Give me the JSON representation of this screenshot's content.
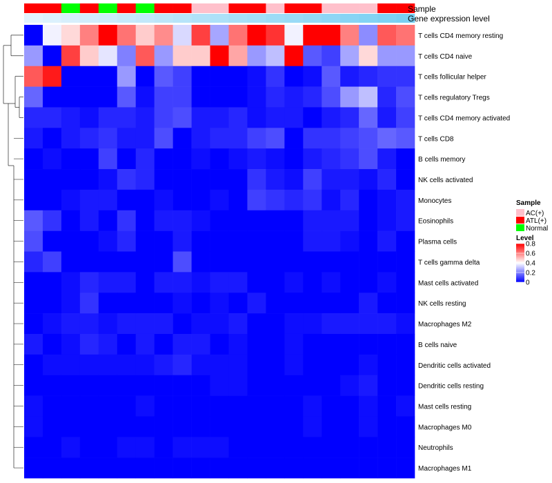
{
  "chart_data": {
    "type": "heatmap",
    "annotation_titles": {
      "sample": "Sample",
      "gene_expression": "Gene expression level"
    },
    "sample_legend": {
      "title": "Sample",
      "entries": [
        {
          "label": "AC(+)",
          "color": "#ffc0cb"
        },
        {
          "label": "ATL(+)",
          "color": "#ff0000"
        },
        {
          "label": "Normal",
          "color": "#00ff00"
        }
      ]
    },
    "level_legend": {
      "title": "Level",
      "ticks": [
        "0.8",
        "0.6",
        "0.4",
        "0.2",
        "0"
      ],
      "tick_values": [
        0.8,
        0.6,
        0.4,
        0.2,
        0
      ],
      "range": [
        0,
        0.8
      ],
      "colors": [
        "#0000ff",
        "#ffffff",
        "#ff0000"
      ]
    },
    "sample_groups": [
      "ATL(+)",
      "ATL(+)",
      "Normal",
      "ATL(+)",
      "Normal",
      "ATL(+)",
      "Normal",
      "ATL(+)",
      "ATL(+)",
      "AC(+)",
      "AC(+)",
      "ATL(+)",
      "ATL(+)",
      "AC(+)",
      "ATL(+)",
      "ATL(+)",
      "AC(+)",
      "AC(+)",
      "AC(+)",
      "ATL(+)",
      "ATL(+)"
    ],
    "gene_expression_level": [
      0.1,
      0.14,
      0.18,
      0.22,
      0.26,
      0.3,
      0.33,
      0.37,
      0.41,
      0.45,
      0.48,
      0.52,
      0.55,
      0.59,
      0.62,
      0.66,
      0.7,
      0.74,
      0.78,
      0.82,
      0.86
    ],
    "rows": [
      "T cells CD4 memory resting",
      "T cells CD4 naive",
      "T cells follicular helper",
      "T cells regulatory  Tregs",
      "T cells CD4 memory activated",
      "T cells CD8",
      "B cells memory",
      "NK cells activated",
      "Monocytes",
      "Eosinophils",
      "Plasma cells",
      "T cells gamma delta",
      "Mast cells activated",
      "NK cells resting",
      "Macrophages M2",
      "B cells naive",
      "Dendritic cells activated",
      "Dendritic cells resting",
      "Mast cells resting",
      "Macrophages M0",
      "Neutrophils",
      "Macrophages M1"
    ],
    "values": [
      [
        0.0,
        0.38,
        0.46,
        0.6,
        0.8,
        0.62,
        0.48,
        0.58,
        0.34,
        0.7,
        0.26,
        0.62,
        0.8,
        0.72,
        0.38,
        0.8,
        0.8,
        0.6,
        0.22,
        0.66,
        0.62
      ],
      [
        0.24,
        0.0,
        0.7,
        0.48,
        0.36,
        0.2,
        0.66,
        0.24,
        0.48,
        0.48,
        0.8,
        0.54,
        0.24,
        0.3,
        0.8,
        0.14,
        0.1,
        0.26,
        0.46,
        0.24,
        0.24
      ],
      [
        0.66,
        0.76,
        0.0,
        0.0,
        0.0,
        0.24,
        0.0,
        0.14,
        0.1,
        0.0,
        0.0,
        0.0,
        0.02,
        0.08,
        0.0,
        0.02,
        0.14,
        0.04,
        0.06,
        0.08,
        0.08
      ],
      [
        0.16,
        0.0,
        0.0,
        0.0,
        0.0,
        0.14,
        0.02,
        0.1,
        0.1,
        0.0,
        0.0,
        0.0,
        0.02,
        0.06,
        0.04,
        0.06,
        0.12,
        0.24,
        0.3,
        0.06,
        0.12
      ],
      [
        0.06,
        0.06,
        0.04,
        0.02,
        0.06,
        0.06,
        0.04,
        0.1,
        0.12,
        0.04,
        0.04,
        0.06,
        0.02,
        0.04,
        0.04,
        0.0,
        0.04,
        0.06,
        0.16,
        0.04,
        0.1
      ],
      [
        0.04,
        0.0,
        0.04,
        0.06,
        0.08,
        0.04,
        0.04,
        0.12,
        0.0,
        0.04,
        0.06,
        0.06,
        0.1,
        0.12,
        0.0,
        0.08,
        0.08,
        0.1,
        0.12,
        0.16,
        0.14
      ],
      [
        0.0,
        0.02,
        0.0,
        0.0,
        0.1,
        0.0,
        0.06,
        0.0,
        0.0,
        0.02,
        0.0,
        0.02,
        0.04,
        0.02,
        0.0,
        0.04,
        0.06,
        0.08,
        0.12,
        0.04,
        0.0
      ],
      [
        0.0,
        0.0,
        0.0,
        0.0,
        0.02,
        0.08,
        0.06,
        0.0,
        0.0,
        0.0,
        0.0,
        0.0,
        0.08,
        0.04,
        0.02,
        0.1,
        0.04,
        0.04,
        0.02,
        0.06,
        0.0
      ],
      [
        0.0,
        0.0,
        0.02,
        0.04,
        0.04,
        0.0,
        0.0,
        0.02,
        0.0,
        0.0,
        0.02,
        0.0,
        0.1,
        0.08,
        0.06,
        0.08,
        0.02,
        0.06,
        0.0,
        0.02,
        0.04
      ],
      [
        0.14,
        0.08,
        0.0,
        0.04,
        0.0,
        0.08,
        0.0,
        0.04,
        0.04,
        0.02,
        0.0,
        0.0,
        0.0,
        0.0,
        0.0,
        0.04,
        0.04,
        0.04,
        0.0,
        0.02,
        0.04
      ],
      [
        0.12,
        0.0,
        0.0,
        0.0,
        0.02,
        0.06,
        0.0,
        0.0,
        0.04,
        0.0,
        0.0,
        0.0,
        0.0,
        0.0,
        0.0,
        0.04,
        0.04,
        0.02,
        0.0,
        0.04,
        0.0
      ],
      [
        0.06,
        0.1,
        0.0,
        0.0,
        0.0,
        0.0,
        0.0,
        0.0,
        0.12,
        0.0,
        0.0,
        0.0,
        0.0,
        0.0,
        0.0,
        0.0,
        0.0,
        0.0,
        0.0,
        0.0,
        0.0
      ],
      [
        0.0,
        0.0,
        0.02,
        0.06,
        0.04,
        0.04,
        0.0,
        0.04,
        0.04,
        0.02,
        0.04,
        0.04,
        0.0,
        0.0,
        0.02,
        0.0,
        0.02,
        0.0,
        0.0,
        0.02,
        0.0
      ],
      [
        0.0,
        0.0,
        0.02,
        0.08,
        0.0,
        0.0,
        0.0,
        0.0,
        0.02,
        0.0,
        0.02,
        0.0,
        0.04,
        0.0,
        0.0,
        0.0,
        0.0,
        0.0,
        0.04,
        0.0,
        0.0
      ],
      [
        0.0,
        0.02,
        0.04,
        0.04,
        0.02,
        0.04,
        0.04,
        0.04,
        0.0,
        0.02,
        0.02,
        0.04,
        0.0,
        0.0,
        0.02,
        0.02,
        0.04,
        0.04,
        0.04,
        0.04,
        0.02
      ],
      [
        0.04,
        0.0,
        0.02,
        0.06,
        0.04,
        0.0,
        0.04,
        0.0,
        0.04,
        0.04,
        0.0,
        0.02,
        0.0,
        0.0,
        0.02,
        0.0,
        0.0,
        0.0,
        0.0,
        0.0,
        0.0
      ],
      [
        0.0,
        0.02,
        0.02,
        0.02,
        0.02,
        0.02,
        0.02,
        0.04,
        0.06,
        0.02,
        0.02,
        0.02,
        0.0,
        0.0,
        0.02,
        0.0,
        0.0,
        0.0,
        0.02,
        0.0,
        0.0
      ],
      [
        0.0,
        0.0,
        0.0,
        0.0,
        0.0,
        0.0,
        0.0,
        0.0,
        0.0,
        0.0,
        0.02,
        0.02,
        0.0,
        0.0,
        0.0,
        0.0,
        0.0,
        0.02,
        0.04,
        0.0,
        0.0
      ],
      [
        0.02,
        0.0,
        0.0,
        0.0,
        0.0,
        0.0,
        0.02,
        0.0,
        0.0,
        0.0,
        0.0,
        0.0,
        0.0,
        0.0,
        0.0,
        0.02,
        0.0,
        0.0,
        0.02,
        0.0,
        0.02
      ],
      [
        0.02,
        0.0,
        0.0,
        0.0,
        0.0,
        0.0,
        0.0,
        0.0,
        0.0,
        0.0,
        0.0,
        0.0,
        0.0,
        0.0,
        0.0,
        0.02,
        0.0,
        0.0,
        0.02,
        0.0,
        0.0
      ],
      [
        0.0,
        0.0,
        0.02,
        0.0,
        0.0,
        0.02,
        0.02,
        0.0,
        0.02,
        0.02,
        0.02,
        0.0,
        0.0,
        0.0,
        0.0,
        0.0,
        0.0,
        0.0,
        0.0,
        0.0,
        0.0
      ],
      [
        0.0,
        0.0,
        0.0,
        0.0,
        0.0,
        0.0,
        0.0,
        0.0,
        0.0,
        0.0,
        0.0,
        0.0,
        0.0,
        0.0,
        0.0,
        0.0,
        0.0,
        0.0,
        0.0,
        0.0,
        0.0
      ]
    ]
  }
}
